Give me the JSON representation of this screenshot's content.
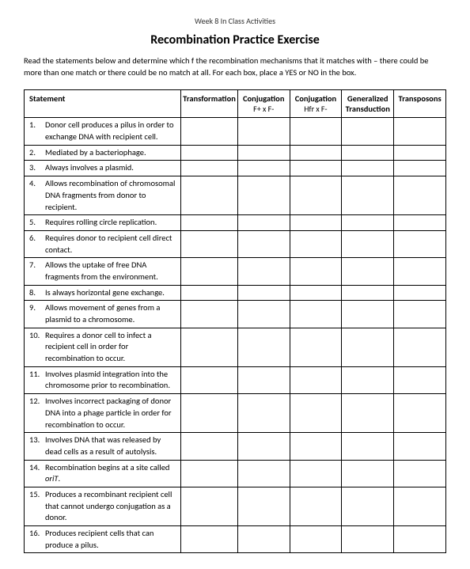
{
  "header_small": "Week 8 In Class Activities",
  "title": "Recombination Practice Exercise",
  "instructions": "Read the statements below and determine which f the recombination mechanisms that it matches with – there could be more than one match or there could be no match at all.  For each box, place a YES or NO in the box.",
  "columns": {
    "statement": "Statement",
    "transformation": "Transformation",
    "conjugation1": "Conjugation",
    "conjugation1_sub": "F+ x F-",
    "conjugation2": "Conjugation",
    "conjugation2_sub": "Hfr x F-",
    "transduction": "Generalized Transduction",
    "transposons": "Transposons"
  },
  "statements": [
    {
      "num": "1.",
      "text": "Donor cell produces a pilus in order to exchange DNA with recipient cell."
    },
    {
      "num": "2.",
      "text": "Mediated by a bacteriophage."
    },
    {
      "num": "3.",
      "text": "Always involves a plasmid."
    },
    {
      "num": "4.",
      "text": "Allows recombination of chromosomal DNA fragments from donor to recipient."
    },
    {
      "num": "5.",
      "text": "Requires rolling circle replication."
    },
    {
      "num": "6.",
      "text": "Requires donor to recipient cell direct contact."
    },
    {
      "num": "7.",
      "text": "Allows the uptake of free DNA fragments from the environment."
    },
    {
      "num": "8.",
      "text": "Is always horizontal gene exchange."
    },
    {
      "num": "9.",
      "text": "Allows movement of genes from a plasmid to a chromosome."
    },
    {
      "num": "10.",
      "text": "Requires a donor cell to infect a recipient cell in order for recombination to occur."
    },
    {
      "num": "11.",
      "text": "Involves plasmid integration into the chromosome prior to recombination."
    },
    {
      "num": "12.",
      "text": "Involves incorrect packaging of donor DNA into a phage particle in order for recombination to occur."
    },
    {
      "num": "13.",
      "text": "Involves DNA that was released by dead cells as a result of autolysis."
    },
    {
      "num": "14.",
      "text": "Recombination begins at a site called oriT."
    },
    {
      "num": "15.",
      "text": "Produces a recombinant recipient cell that cannot undergo conjugation as a donor."
    },
    {
      "num": "16.",
      "text": "Produces recipient cells that can produce a pilus."
    }
  ]
}
